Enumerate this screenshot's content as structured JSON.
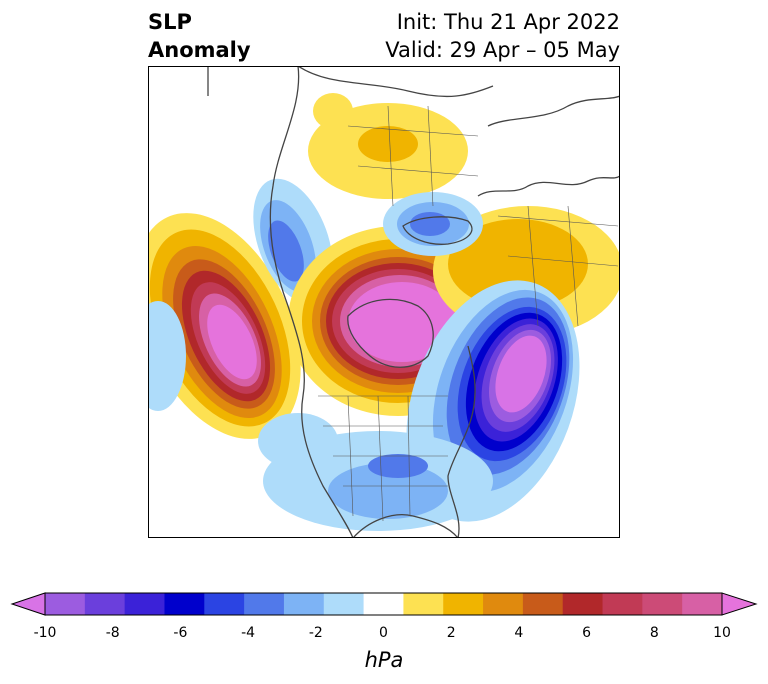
{
  "header": {
    "title_line1": "SLP",
    "title_line2": "Anomaly",
    "init_text": "Init: Thu 21 Apr 2022",
    "valid_text": "Valid: 29 Apr – 05 May"
  },
  "colorbar": {
    "units": "hPa",
    "tick_labels": [
      "-10",
      "-8",
      "-6",
      "-4",
      "-2",
      "0",
      "2",
      "4",
      "6",
      "8",
      "10"
    ],
    "colors": [
      "#d873e6",
      "#9c5ce0",
      "#6b3fdc",
      "#3b22d8",
      "#0000cc",
      "#2b44e3",
      "#5179ea",
      "#7db3f5",
      "#aedcfa",
      "#ffffff",
      "#fde152",
      "#f0b400",
      "#e08a0e",
      "#c85b1a",
      "#b1282a",
      "#c13a55",
      "#cc4b77",
      "#d760a5",
      "#e573dc"
    ]
  }
}
